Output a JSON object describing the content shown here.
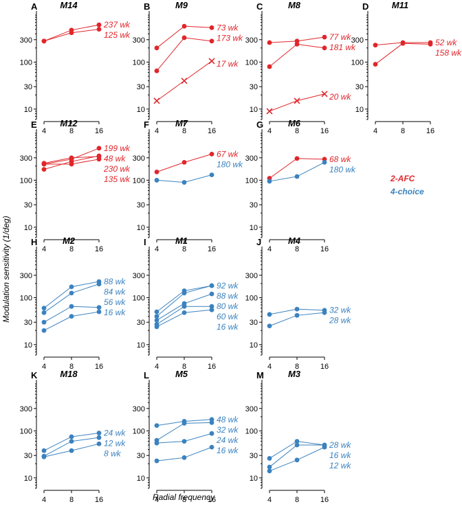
{
  "colors": {
    "afc": "#e0262b",
    "choice": "#3b82bf",
    "axis": "#000000"
  },
  "chart_data": {
    "type": "line",
    "xlabel": "Radial frequency",
    "ylabel": "Modulation sensitivity (1/deg)",
    "x_ticks": [
      4,
      8,
      16
    ],
    "y_ticks": [
      10,
      30,
      100,
      300
    ],
    "ylim": [
      6,
      1000
    ],
    "legend": [
      {
        "label": "2-AFC",
        "color_key": "afc"
      },
      {
        "label": "4-choice",
        "color_key": "choice"
      }
    ],
    "panels": [
      {
        "letter": "A",
        "title": "M14",
        "series": [
          {
            "name": "237 wk",
            "method": "2-AFC",
            "values": [
              280,
              480,
              620
            ]
          },
          {
            "name": "125 wk",
            "method": "2-AFC",
            "values": [
              280,
              420,
              500
            ]
          }
        ]
      },
      {
        "letter": "B",
        "title": "M9",
        "series": [
          {
            "name": "73 wk",
            "method": "2-AFC",
            "values": [
              200,
              580,
              540
            ]
          },
          {
            "name": "173 wk",
            "method": "2-AFC",
            "values": [
              65,
              330,
              280
            ]
          },
          {
            "name": "17 wk",
            "method": "2-AFC",
            "marker": "x",
            "values": [
              15,
              40,
              105
            ]
          }
        ]
      },
      {
        "letter": "C",
        "title": "M8",
        "series": [
          {
            "name": "77 wk",
            "method": "2-AFC",
            "values": [
              260,
              280,
              340
            ]
          },
          {
            "name": "181 wk",
            "method": "2-AFC",
            "values": [
              80,
              240,
              200
            ]
          },
          {
            "name": "20 wk",
            "method": "2-AFC",
            "marker": "x",
            "values": [
              9,
              15,
              21
            ]
          }
        ]
      },
      {
        "letter": "D",
        "title": "M11",
        "series": [
          {
            "name": "52 wk",
            "method": "2-AFC",
            "values": [
              230,
              260,
              260
            ]
          },
          {
            "name": "158 wk",
            "method": "2-AFC",
            "values": [
              90,
              250,
              240
            ]
          }
        ]
      },
      {
        "letter": "E",
        "title": "M12",
        "series": [
          {
            "name": "199 wk",
            "method": "2-AFC",
            "values": [
              220,
              280,
              480
            ]
          },
          {
            "name": "48 wk",
            "method": "2-AFC",
            "values": [
              230,
              300,
              320
            ]
          },
          {
            "name": "230 wk",
            "method": "2-AFC",
            "values": [
              220,
              220,
              280
            ]
          },
          {
            "name": "135 wk",
            "method": "2-AFC",
            "values": [
              170,
              250,
              330
            ]
          }
        ]
      },
      {
        "letter": "F",
        "title": "M7",
        "series": [
          {
            "name": "67 wk",
            "method": "2-AFC",
            "values": [
              150,
              240,
              360
            ]
          },
          {
            "name": "180 wk",
            "method": "4-choice",
            "values": [
              100,
              90,
              130
            ]
          }
        ]
      },
      {
        "letter": "G",
        "title": "M6",
        "series": [
          {
            "name": "68 wk",
            "method": "2-AFC",
            "values": [
              110,
              290,
              280
            ]
          },
          {
            "name": "180 wk",
            "method": "4-choice",
            "values": [
              95,
              120,
              240
            ]
          }
        ]
      },
      {
        "letter": "H",
        "title": "M2",
        "series": [
          {
            "name": "88 wk",
            "method": "4-choice",
            "values": [
              60,
              170,
              220
            ]
          },
          {
            "name": "84 wk",
            "method": "4-choice",
            "values": [
              48,
              125,
              195
            ]
          },
          {
            "name": "56 wk",
            "method": "4-choice",
            "values": [
              30,
              65,
              62
            ]
          },
          {
            "name": "16 wk",
            "method": "4-choice",
            "values": [
              20,
              40,
              50
            ]
          }
        ]
      },
      {
        "letter": "I",
        "title": "M1",
        "series": [
          {
            "name": "92 wk",
            "method": "4-choice",
            "values": [
              50,
              140,
              180
            ]
          },
          {
            "name": "88 wk",
            "method": "4-choice",
            "values": [
              40,
              125,
              180
            ]
          },
          {
            "name": "80 wk",
            "method": "4-choice",
            "values": [
              33,
              75,
              120
            ]
          },
          {
            "name": "60 wk",
            "method": "4-choice",
            "values": [
              27,
              65,
              65
            ]
          },
          {
            "name": "16 wk",
            "method": "4-choice",
            "values": [
              24,
              48,
              55
            ]
          }
        ]
      },
      {
        "letter": "J",
        "title": "M4",
        "series": [
          {
            "name": "32 wk",
            "method": "4-choice",
            "values": [
              44,
              57,
              54
            ]
          },
          {
            "name": "28 wk",
            "method": "4-choice",
            "values": [
              25,
              42,
              48
            ]
          }
        ]
      },
      {
        "letter": "K",
        "title": "M18",
        "series": [
          {
            "name": "24 wk",
            "method": "4-choice",
            "values": [
              38,
              75,
              90
            ]
          },
          {
            "name": "12 wk",
            "method": "4-choice",
            "values": [
              29,
              60,
              72
            ]
          },
          {
            "name": "8 wk",
            "method": "4-choice",
            "values": [
              28,
              38,
              53
            ]
          }
        ]
      },
      {
        "letter": "L",
        "title": "M5",
        "series": [
          {
            "name": "48 wk",
            "method": "4-choice",
            "values": [
              130,
              160,
              175
            ]
          },
          {
            "name": "32 wk",
            "method": "4-choice",
            "values": [
              63,
              145,
              150
            ]
          },
          {
            "name": "24 wk",
            "method": "4-choice",
            "values": [
              55,
              60,
              88
            ]
          },
          {
            "name": "16 wk",
            "method": "4-choice",
            "values": [
              23,
              27,
              45
            ]
          }
        ]
      },
      {
        "letter": "M",
        "title": "M3",
        "series": [
          {
            "name": "28 wk",
            "method": "4-choice",
            "values": [
              26,
              60,
              50
            ]
          },
          {
            "name": "16 wk",
            "method": "4-choice",
            "values": [
              17,
              50,
              50
            ]
          },
          {
            "name": "12 wk",
            "method": "4-choice",
            "values": [
              14,
              24,
              45
            ]
          }
        ]
      }
    ]
  }
}
